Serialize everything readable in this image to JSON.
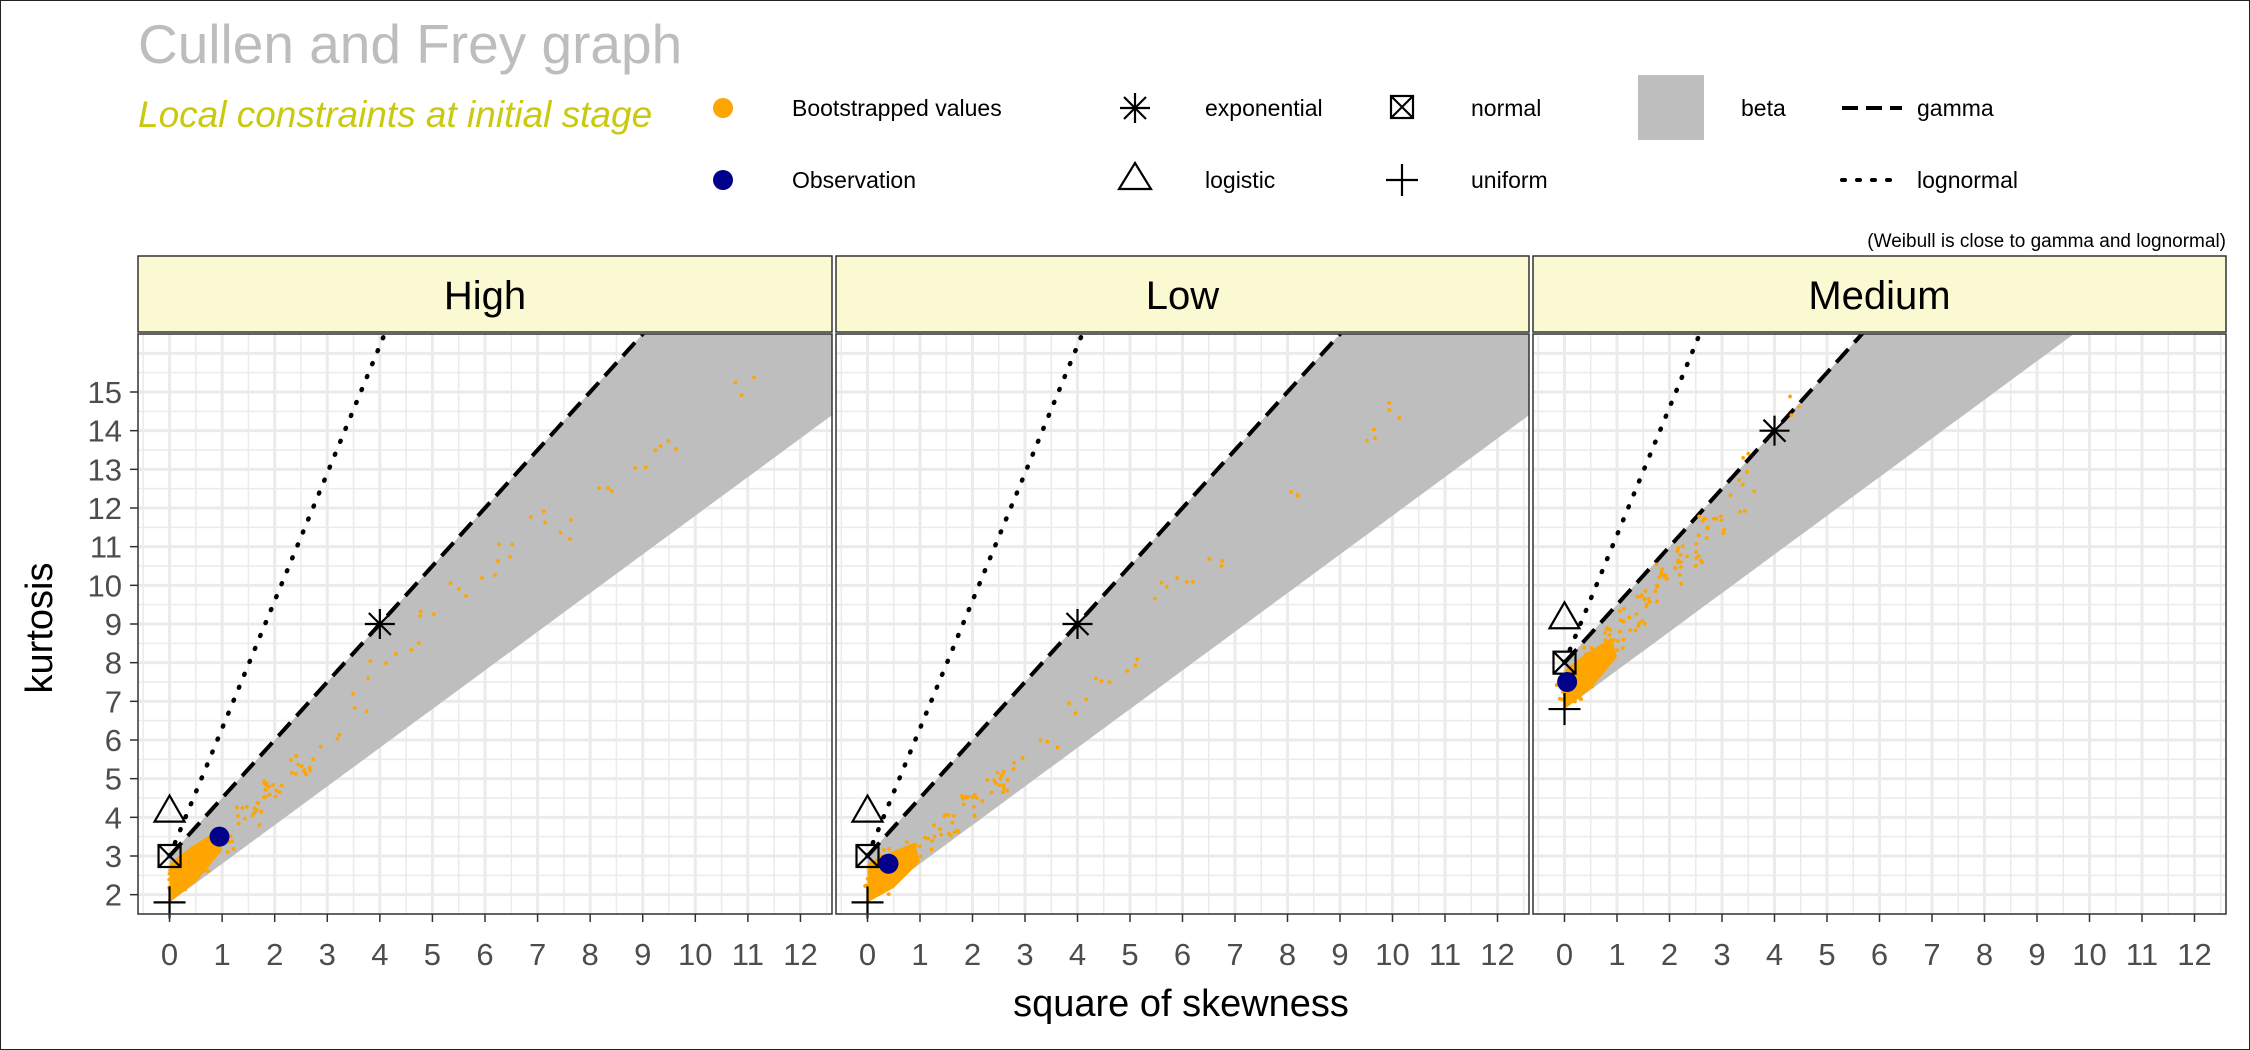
{
  "title": "Cullen and Frey graph",
  "subtitle": "Local constraints at initial stage",
  "note": "(Weibull is close to gamma and lognormal)",
  "legend": {
    "bootstrapped": "Bootstrapped values",
    "observation": "Observation",
    "exponential": "exponential",
    "logistic": "logistic",
    "normal": "normal",
    "uniform": "uniform",
    "beta": "beta",
    "gamma": "gamma",
    "lognormal": "lognormal"
  },
  "colors": {
    "bootstrap": "#FFA500",
    "observation": "#00008B",
    "beta_region": "#BEBEBE",
    "strip_bg": "#FAF9D2",
    "grid": "#EBEBEB",
    "title": "#BDBDBD",
    "subtitle": "#C9C910"
  },
  "chart_data": {
    "type": "scatter",
    "xlabel": "square of skewness",
    "ylabel": "kurtosis",
    "xlim": [
      -0.6,
      12.6
    ],
    "ylim": [
      16.5,
      1.5
    ],
    "y_reversed": true,
    "xticks": [
      "0",
      "1",
      "2",
      "3",
      "4",
      "5",
      "6",
      "7",
      "8",
      "9",
      "10",
      "11",
      "12"
    ],
    "yticks": [
      "2",
      "3",
      "4",
      "5",
      "6",
      "7",
      "8",
      "9",
      "10",
      "11",
      "12",
      "13",
      "14",
      "15"
    ],
    "panels": [
      {
        "name": "High",
        "observation": {
          "x": 0.95,
          "y": 3.5
        },
        "bootstrap_envelope_upper_y_at_x0": 1.8,
        "bootstrap_envelope_slope": 1.05,
        "bootstrap_sample_points": [
          [
            0.2,
            2.4
          ],
          [
            0.5,
            2.9
          ],
          [
            1.0,
            3.4
          ],
          [
            1.5,
            4.1
          ],
          [
            2.0,
            4.8
          ],
          [
            2.5,
            5.4
          ],
          [
            3.0,
            6.1
          ],
          [
            3.5,
            7.0
          ],
          [
            4.0,
            7.8
          ],
          [
            4.5,
            8.4
          ],
          [
            5.0,
            9.1
          ],
          [
            5.5,
            9.8
          ],
          [
            6.0,
            10.4
          ],
          [
            6.5,
            11.0
          ],
          [
            7.0,
            11.7
          ],
          [
            7.4,
            11.5
          ],
          [
            8.2,
            12.6
          ],
          [
            9.0,
            13.2
          ],
          [
            9.5,
            13.8
          ],
          [
            11.0,
            15.2
          ]
        ],
        "reference": {
          "uniform": {
            "x": 0,
            "y": 1.8
          },
          "normal": {
            "x": 0,
            "y": 3
          },
          "logistic": {
            "x": 0,
            "y": 4.2
          },
          "exponential": {
            "x": 4,
            "y": 9
          }
        }
      },
      {
        "name": "Low",
        "observation": {
          "x": 0.4,
          "y": 2.8
        },
        "bootstrap_envelope_upper_y_at_x0": 1.8,
        "bootstrap_envelope_slope": 0.75,
        "bootstrap_sample_points": [
          [
            0.2,
            2.3
          ],
          [
            0.5,
            2.9
          ],
          [
            1.0,
            3.2
          ],
          [
            1.5,
            3.8
          ],
          [
            2.0,
            4.3
          ],
          [
            2.5,
            4.9
          ],
          [
            3.0,
            5.4
          ],
          [
            3.5,
            6.1
          ],
          [
            4.0,
            6.8
          ],
          [
            4.5,
            7.3
          ],
          [
            5.0,
            7.9
          ],
          [
            5.5,
            9.8
          ],
          [
            6.0,
            10.3
          ],
          [
            6.7,
            10.8
          ],
          [
            8.0,
            12.3
          ],
          [
            9.5,
            13.9
          ],
          [
            10.0,
            14.6
          ]
        ],
        "reference": {
          "uniform": {
            "x": 0,
            "y": 1.8
          },
          "normal": {
            "x": 0,
            "y": 3
          },
          "logistic": {
            "x": 0,
            "y": 4.2
          },
          "exponential": {
            "x": 4,
            "y": 9
          }
        }
      },
      {
        "name": "Medium",
        "observation": {
          "x": 0.05,
          "y": 7.5
        },
        "bootstrap_envelope_upper_y_at_x0": 6.8,
        "bootstrap_envelope_slope": 1.05,
        "bootstrap_sample_points": [
          [
            0.1,
            7.2
          ],
          [
            0.3,
            7.6
          ],
          [
            0.6,
            8.1
          ],
          [
            1.0,
            8.6
          ],
          [
            1.3,
            9.1
          ],
          [
            1.6,
            9.7
          ],
          [
            2.0,
            10.3
          ],
          [
            2.4,
            10.8
          ],
          [
            2.8,
            11.5
          ],
          [
            3.2,
            12.1
          ],
          [
            3.4,
            12.7
          ],
          [
            3.6,
            13.2
          ],
          [
            4.3,
            14.7
          ]
        ],
        "reference": {
          "uniform": {
            "x": 0,
            "y": 6.8
          },
          "normal": {
            "x": 0,
            "y": 8
          },
          "logistic": {
            "x": 0,
            "y": 9.2
          },
          "exponential": {
            "x": 4,
            "y": 14
          }
        }
      }
    ]
  }
}
